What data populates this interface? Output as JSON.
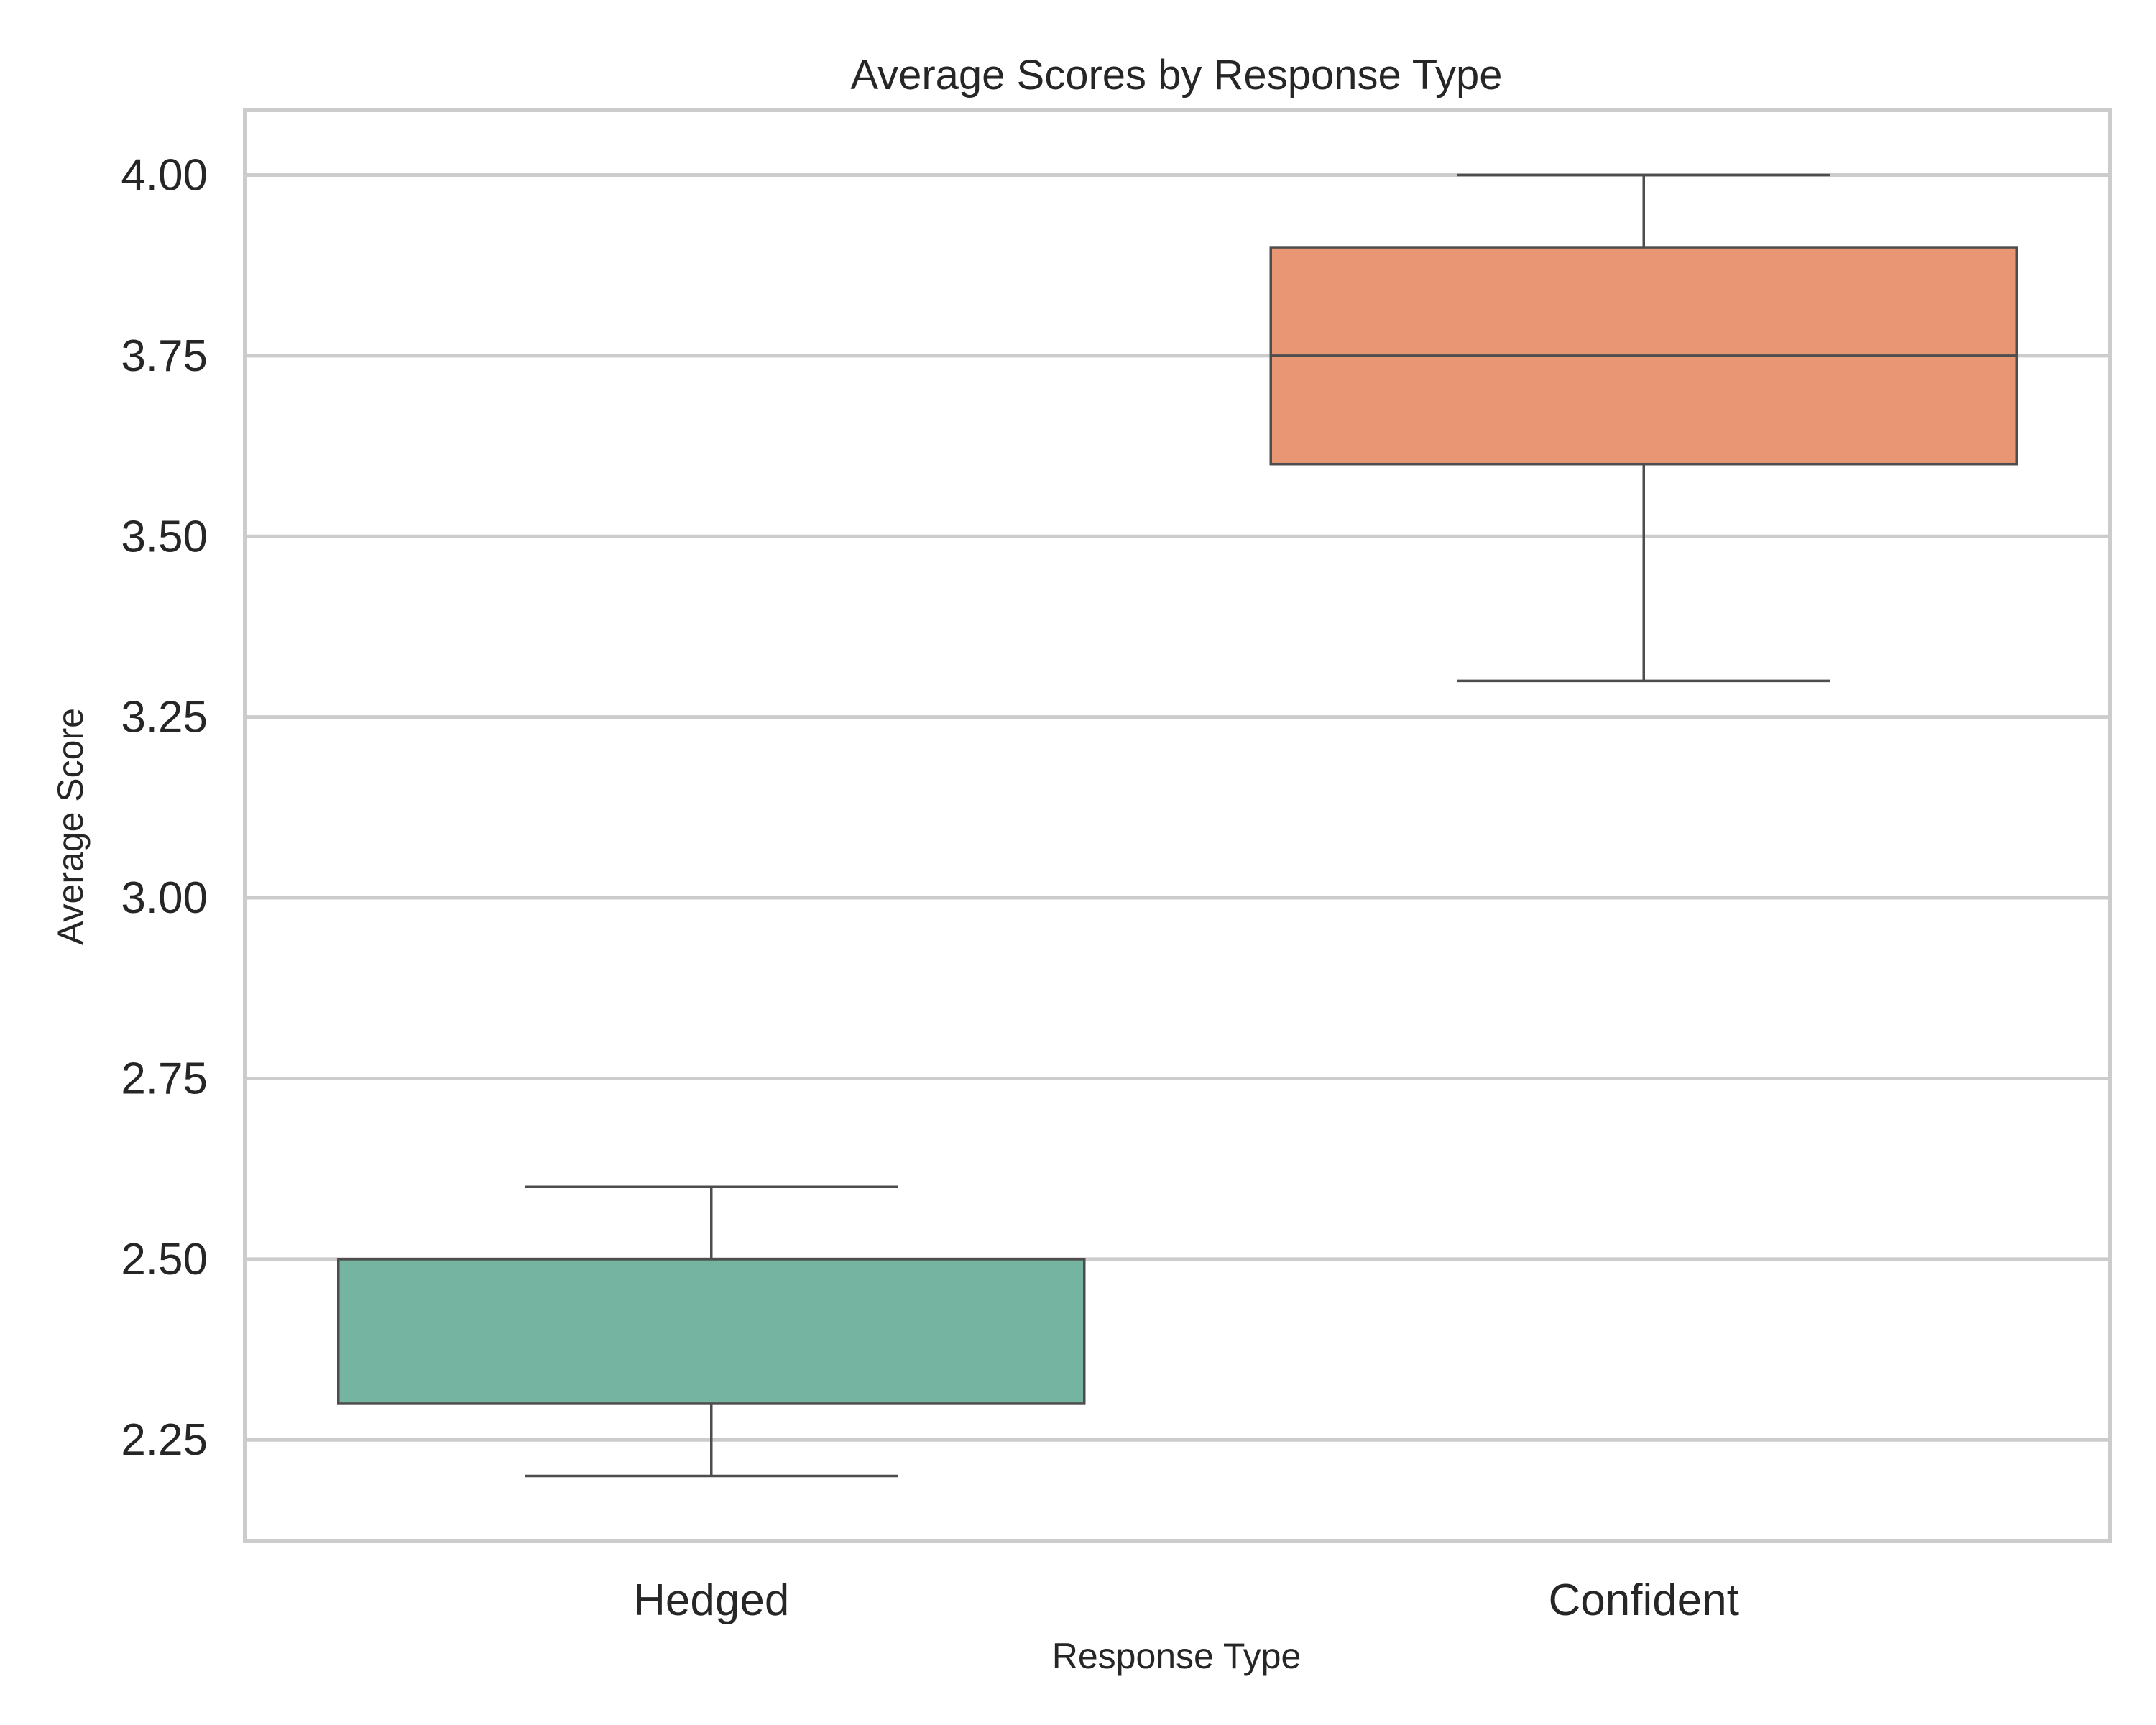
{
  "chart_data": {
    "type": "box",
    "title": "Average Scores by Response Type",
    "xlabel": "Response Type",
    "ylabel": "Average Score",
    "categories": [
      "Hedged",
      "Confident"
    ],
    "ylim": [
      2.11,
      4.09
    ],
    "yticks": [
      2.25,
      2.5,
      2.75,
      3.0,
      3.25,
      3.5,
      3.75,
      4.0
    ],
    "ytick_labels": [
      "2.25",
      "2.50",
      "2.75",
      "3.00",
      "3.25",
      "3.50",
      "3.75",
      "4.00"
    ],
    "grid": "horizontal",
    "boxes": [
      {
        "category": "Hedged",
        "whisker_low": 2.2,
        "q1": 2.3,
        "median": 2.5,
        "q3": 2.5,
        "whisker_high": 2.6,
        "color": "#75b4a0"
      },
      {
        "category": "Confident",
        "whisker_low": 3.3,
        "q1": 3.6,
        "median": 3.75,
        "q3": 3.9,
        "whisker_high": 4.0,
        "color": "#e89674"
      }
    ],
    "colors": {
      "grid": "#cccccc",
      "frame": "#cccccc",
      "box_edge": "#4d4d4d",
      "text": "#262626"
    }
  }
}
